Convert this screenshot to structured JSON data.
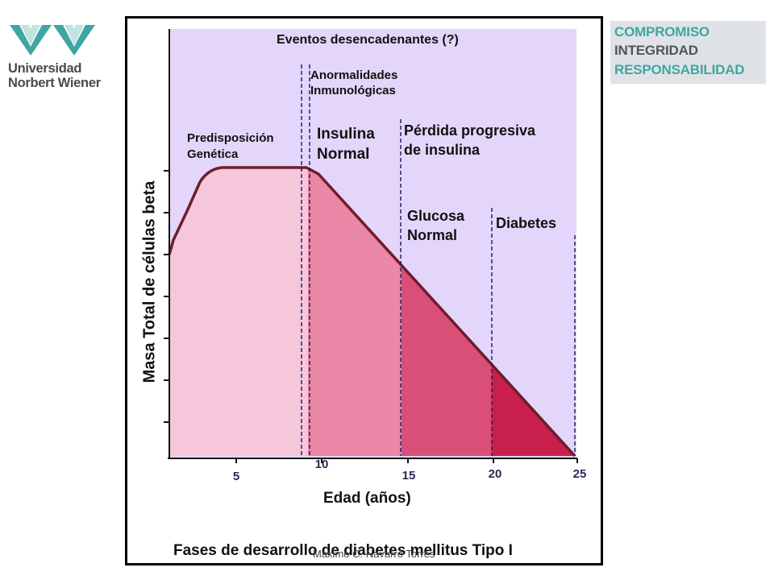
{
  "logo": {
    "line1": "Universidad",
    "line2": "Norbert Wiener"
  },
  "badge": {
    "line1": "COMPROMISO",
    "line2": "INTEGRIDAD",
    "line3": "RESPONSABILIDAD"
  },
  "colors": {
    "background": "#e4d6fb",
    "phase1": "#f6c6da",
    "phase2": "#ea86a6",
    "phase3": "#d94f78",
    "phase4": "#c81f4c",
    "curve": "#6d1e2a"
  },
  "diagram": {
    "header": "Eventos desencadenantes (?)",
    "phases": [
      {
        "label_line1": "Predisposición",
        "label_line2": "Genética"
      },
      {
        "label_line1": "Anormalidades",
        "label_line2": "Inmunológicas"
      },
      {
        "label_line1": "Insulina",
        "label_line2": "Normal"
      },
      {
        "label_line1": "Pérdida progresiva",
        "label_line2": "de insulina"
      },
      {
        "label_line1": "Glucosa",
        "label_line2": "Normal"
      },
      {
        "label_line1": "Diabetes",
        "label_line2": ""
      }
    ],
    "ylabel": "Masa Total de células beta",
    "xlabel": "Edad (años)",
    "xticks": [
      "5",
      "10",
      "15",
      "20",
      "25"
    ],
    "title": "Fases de desarrollo de diabetes mellitus Tipo I"
  },
  "credit": "Maximo C. Navarro Torres"
}
